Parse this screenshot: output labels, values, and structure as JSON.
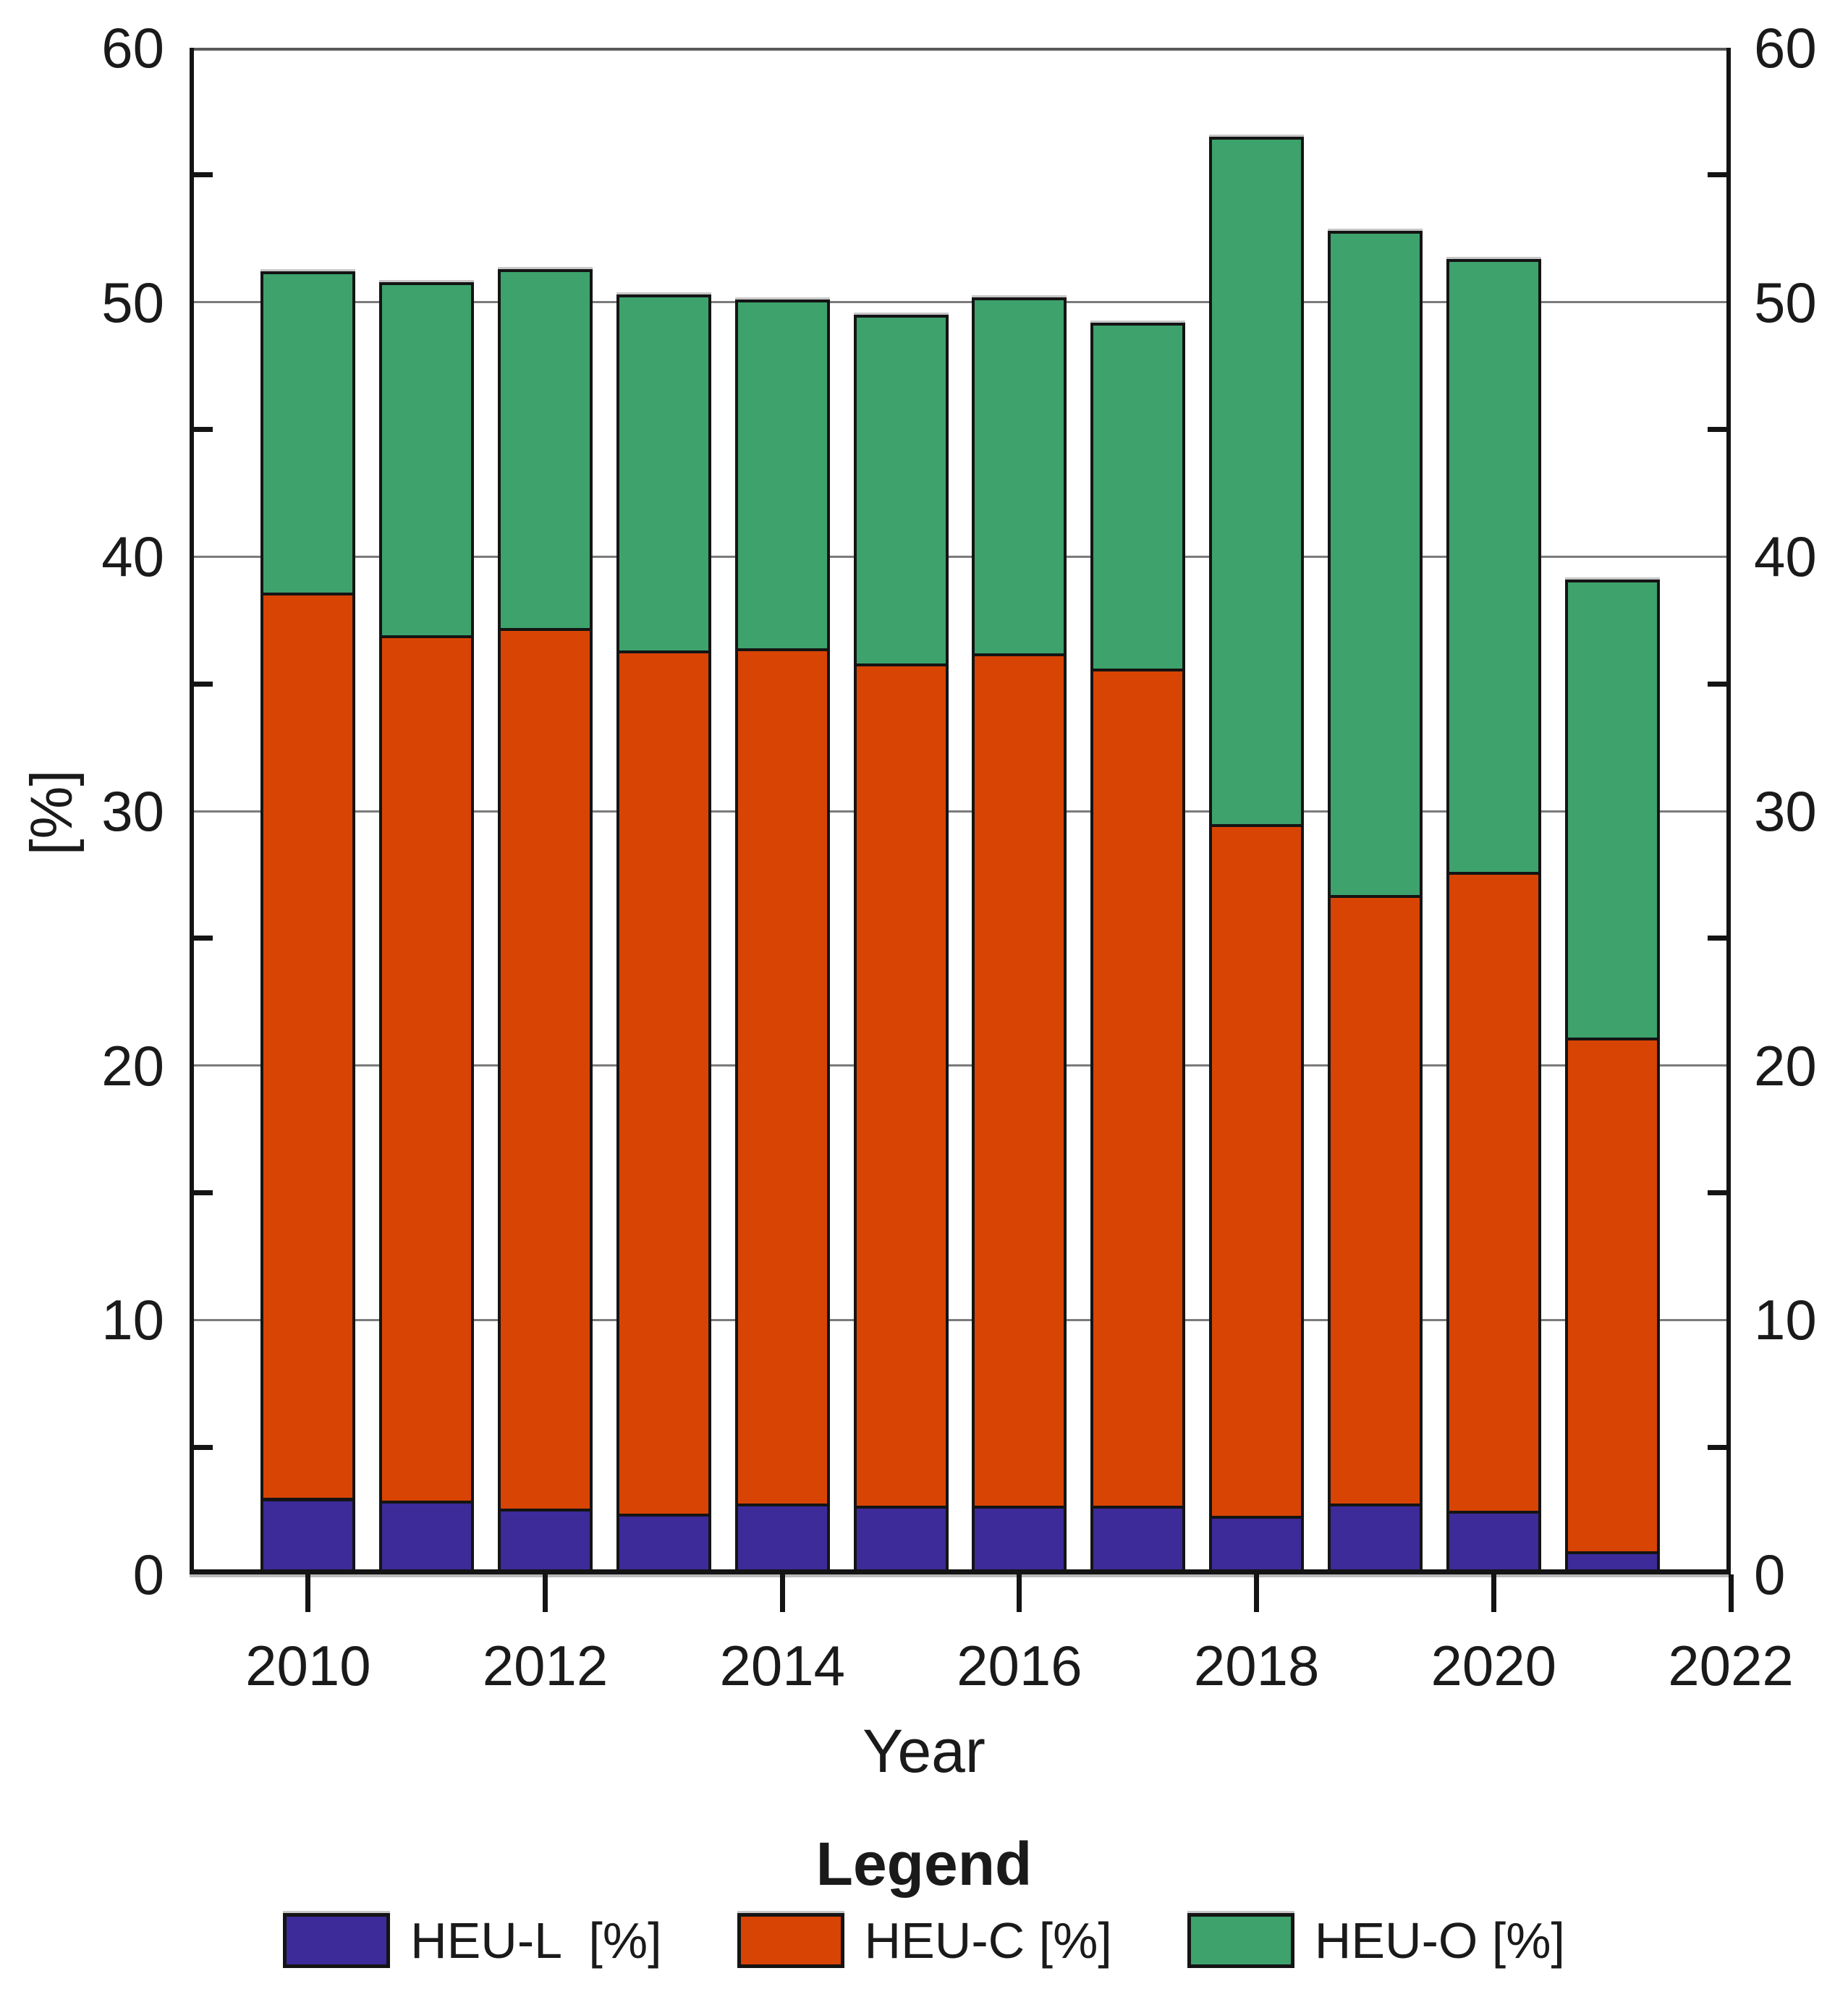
{
  "figure": {
    "y_axis_label": "[%]",
    "x_axis_label": "Year",
    "legend_title": "Legend"
  },
  "chart_data": {
    "type": "bar",
    "stacked": true,
    "title": "",
    "xlabel": "Year",
    "ylabel": "[%]",
    "categories": [
      2010,
      2011,
      2012,
      2013,
      2014,
      2015,
      2016,
      2017,
      2018,
      2019,
      2020,
      2021
    ],
    "series": [
      {
        "name": "HEU-L  [%]",
        "color": "#3C2B99",
        "values": [
          3.0,
          2.9,
          2.6,
          2.4,
          2.8,
          2.7,
          2.7,
          2.7,
          2.3,
          2.8,
          2.5,
          0.9
        ]
      },
      {
        "name": "HEU-C [%]",
        "color": "#D84404",
        "values": [
          35.6,
          34.0,
          34.6,
          33.9,
          33.6,
          33.1,
          33.5,
          32.9,
          27.2,
          23.9,
          25.1,
          20.2
        ]
      },
      {
        "name": "HEU-O [%]",
        "color": "#3DA26C",
        "values": [
          12.6,
          13.9,
          14.1,
          14.0,
          13.7,
          13.7,
          14.0,
          13.6,
          27.0,
          26.1,
          24.1,
          18.0
        ]
      }
    ],
    "stack_totals": [
      51.2,
      50.8,
      51.3,
      50.3,
      50.1,
      49.5,
      50.2,
      49.2,
      56.5,
      52.8,
      51.7,
      39.1
    ],
    "ylim": [
      0,
      60
    ],
    "xlim": [
      2009,
      2022
    ],
    "y_ticks_major": [
      0,
      10,
      20,
      30,
      40,
      50,
      60
    ],
    "y_ticks_minor": [
      5,
      15,
      25,
      35,
      45,
      55
    ],
    "x_ticks": [
      2010,
      2012,
      2014,
      2016,
      2018,
      2020,
      2022
    ],
    "bar_width_years": 0.8,
    "grid": "horizontal-major",
    "y_axis_sides": "both",
    "legend_position": "bottom",
    "background_color": "#ffffff",
    "gridline_color": "#7b7b7b",
    "axis_color": "#141414"
  }
}
